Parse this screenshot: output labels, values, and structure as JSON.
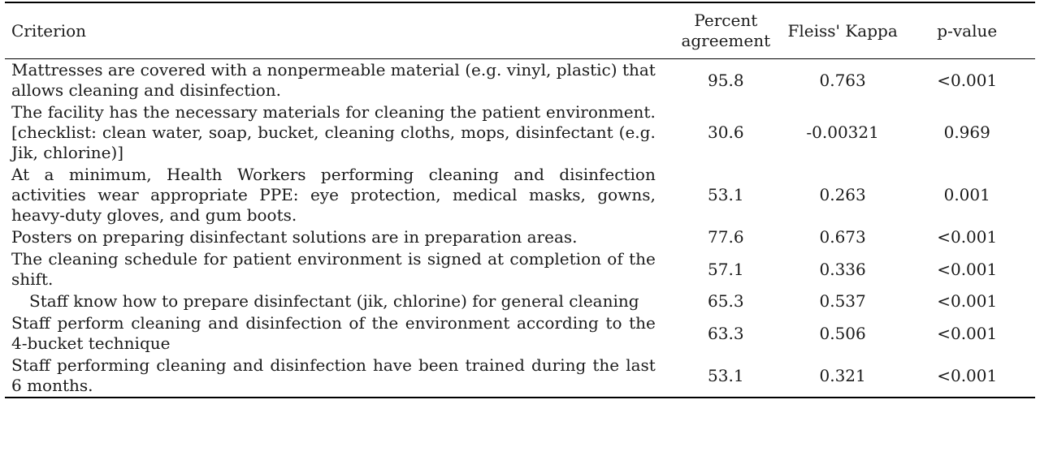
{
  "table": {
    "headers": {
      "criterion": "Criterion",
      "percent": "Percent agreement",
      "kappa": "Fleiss' Kappa",
      "pvalue": "p-value"
    },
    "rows": [
      {
        "criterion": "Mattresses are covered with a nonpermeable material (e.g. vinyl, plastic) that allows cleaning and disinfection.",
        "percent": "95.8",
        "kappa": "0.763",
        "pvalue": "<0.001"
      },
      {
        "criterion": "The facility has the necessary materials for cleaning the patient environment. [checklist: clean water, soap, bucket, cleaning cloths, mops, disinfectant (e.g. Jik, chlorine)]",
        "percent": "30.6",
        "kappa": "-0.00321",
        "pvalue": "0.969"
      },
      {
        "criterion": "At a minimum, Health Workers performing cleaning and disinfection activities wear appropriate PPE: eye protection, medical masks, gowns, heavy-duty gloves, and gum boots.",
        "percent": "53.1",
        "kappa": "0.263",
        "pvalue": "0.001"
      },
      {
        "criterion": "Posters on preparing disinfectant solutions are in preparation areas.",
        "percent": "77.6",
        "kappa": "0.673",
        "pvalue": "<0.001"
      },
      {
        "criterion": "The cleaning schedule for patient environment is signed at completion of the shift.",
        "percent": "57.1",
        "kappa": "0.336",
        "pvalue": "<0.001"
      },
      {
        "criterion": "Staff know how to prepare disinfectant (jik, chlorine) for general cleaning",
        "percent": "65.3",
        "kappa": "0.537",
        "pvalue": "<0.001"
      },
      {
        "criterion": "Staff perform cleaning and disinfection of the environment according to the 4-bucket technique",
        "percent": "63.3",
        "kappa": "0.506",
        "pvalue": "<0.001"
      },
      {
        "criterion": "Staff performing cleaning and disinfection have been trained during the last 6 months.",
        "percent": "53.1",
        "kappa": "0.321",
        "pvalue": "<0.001"
      }
    ]
  }
}
